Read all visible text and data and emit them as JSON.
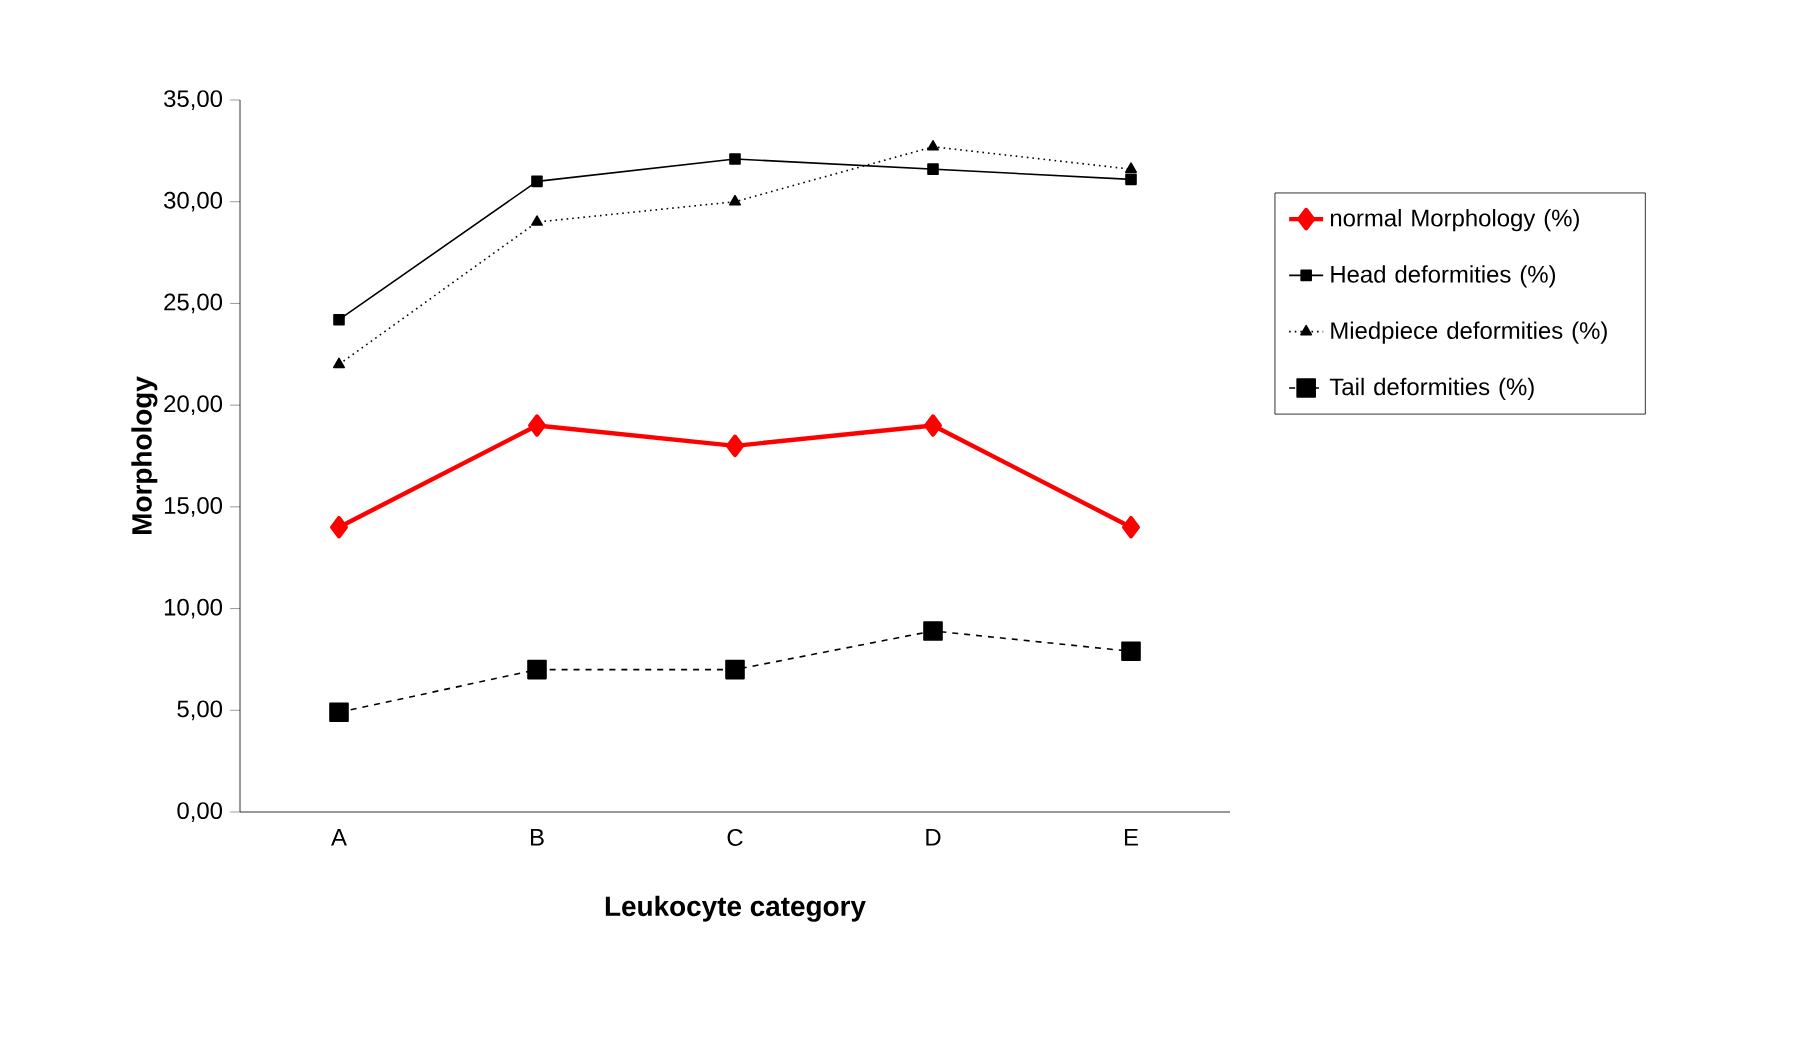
{
  "chart_data": {
    "type": "line",
    "xlabel": "Leukocyte category",
    "ylabel": "Morphology",
    "categories": [
      "A",
      "B",
      "C",
      "D",
      "E"
    ],
    "series": [
      {
        "name": "normal Morphology (%)",
        "color": "#ff0000",
        "marker": "diamond",
        "line_style": "solid",
        "values": [
          14.0,
          19.0,
          18.0,
          19.0,
          14.0
        ]
      },
      {
        "name": "Head deformities (%)",
        "color": "#000000",
        "marker": "square",
        "line_style": "solid",
        "values": [
          24.2,
          31.0,
          32.1,
          31.6,
          31.1
        ]
      },
      {
        "name": "Miedpiece deformities (%)",
        "color": "#000000",
        "marker": "triangle",
        "line_style": "dotted",
        "values": [
          22.0,
          29.0,
          30.0,
          32.7,
          31.6
        ]
      },
      {
        "name": "Tail deformities (%)",
        "color": "#000000",
        "marker": "square",
        "line_style": "dashed",
        "values": [
          4.9,
          7.0,
          7.0,
          8.9,
          7.9
        ]
      }
    ],
    "ylim": [
      0,
      35
    ],
    "yticks": [
      {
        "value": 0,
        "label": "0,00"
      },
      {
        "value": 5,
        "label": "5,00"
      },
      {
        "value": 10,
        "label": "10,00"
      },
      {
        "value": 15,
        "label": "15,00"
      },
      {
        "value": 20,
        "label": "20,00"
      },
      {
        "value": 25,
        "label": "25,00"
      },
      {
        "value": 30,
        "label": "30,00"
      },
      {
        "value": 35,
        "label": "35,00"
      }
    ],
    "grid": false,
    "legend": "right"
  }
}
